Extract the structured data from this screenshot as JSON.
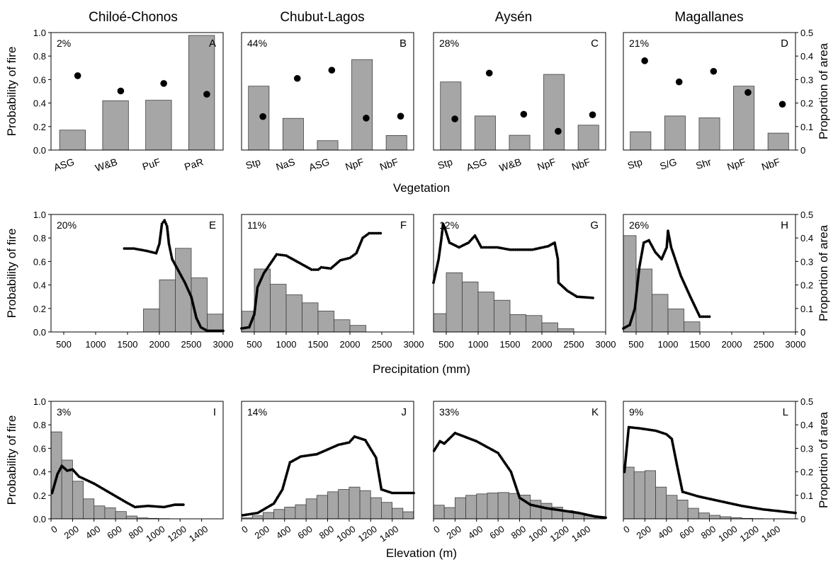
{
  "column_titles": [
    "Chiloé-Chonos",
    "Chubut-Lagos",
    "Aysén",
    "Magallanes"
  ],
  "row_xlabels": [
    "Vegetation",
    "Precipitation (mm)",
    "Elevation (m)"
  ],
  "left_ylabel": "Probability of fire",
  "right_ylabel": "Proportion of area",
  "left_yticks": [
    "0.0",
    "0.2",
    "0.4",
    "0.6",
    "0.8",
    "1.0"
  ],
  "right_yticks": [
    "0",
    "0.1",
    "0.2",
    "0.3",
    "0.4",
    "0.5"
  ],
  "colors": {
    "bar_fill": "#a6a6a6",
    "bar_stroke": "#3f3f3f",
    "marker": "#000000"
  },
  "chart_data": [
    {
      "panel": "A",
      "type": "bar",
      "pct": "2%",
      "categories": [
        "ASG",
        "W&B",
        "PuF",
        "PaR"
      ],
      "bars": [
        0.085,
        0.21,
        0.212,
        0.488
      ],
      "dots": [
        0.633,
        0.503,
        0.567,
        0.475
      ],
      "left_ylim": [
        0,
        1
      ],
      "right_ylim": [
        0,
        0.5
      ]
    },
    {
      "panel": "B",
      "type": "bar",
      "pct": "44%",
      "categories": [
        "Stp",
        "NaS",
        "ASG",
        "NpF",
        "NbF"
      ],
      "bars": [
        0.272,
        0.135,
        0.04,
        0.385,
        0.062
      ],
      "dots": [
        0.285,
        0.61,
        0.68,
        0.272,
        0.288
      ],
      "left_ylim": [
        0,
        1
      ],
      "right_ylim": [
        0,
        0.5
      ]
    },
    {
      "panel": "C",
      "type": "bar",
      "pct": "28%",
      "categories": [
        "Stp",
        "ASG",
        "W&B",
        "NpF",
        "NbF"
      ],
      "bars": [
        0.29,
        0.145,
        0.063,
        0.322,
        0.106
      ],
      "dots": [
        0.265,
        0.655,
        0.305,
        0.16,
        0.3
      ],
      "left_ylim": [
        0,
        1
      ],
      "right_ylim": [
        0,
        0.5
      ]
    },
    {
      "panel": "D",
      "type": "bar",
      "pct": "21%",
      "categories": [
        "Stp",
        "S/G",
        "Shr",
        "NpF",
        "NbF"
      ],
      "bars": [
        0.078,
        0.145,
        0.137,
        0.272,
        0.072
      ],
      "dots": [
        0.76,
        0.58,
        0.67,
        0.49,
        0.39
      ],
      "left_ylim": [
        0,
        1
      ],
      "right_ylim": [
        0,
        0.5
      ]
    },
    {
      "panel": "E",
      "type": "histogram_line",
      "pct": "20%",
      "xlim": [
        300,
        3000
      ],
      "xticks": [
        500,
        1000,
        1500,
        2000,
        2500,
        3000
      ],
      "xticklabels": [
        "500",
        "1000",
        "1500",
        "2000",
        "2500",
        "3000"
      ],
      "bin_edges": [
        1750,
        2000,
        2250,
        2500,
        2750,
        3000
      ],
      "bars": [
        0.098,
        0.222,
        0.356,
        0.23,
        0.076
      ],
      "curve": [
        [
          1450,
          0.71
        ],
        [
          1600,
          0.71
        ],
        [
          1800,
          0.69
        ],
        [
          1950,
          0.67
        ],
        [
          2000,
          0.75
        ],
        [
          2040,
          0.92
        ],
        [
          2080,
          0.95
        ],
        [
          2120,
          0.9
        ],
        [
          2150,
          0.75
        ],
        [
          2200,
          0.62
        ],
        [
          2300,
          0.52
        ],
        [
          2400,
          0.42
        ],
        [
          2500,
          0.3
        ],
        [
          2580,
          0.12
        ],
        [
          2650,
          0.04
        ],
        [
          2750,
          0.01
        ],
        [
          3000,
          0.01
        ]
      ],
      "left_ylim": [
        0,
        1
      ],
      "right_ylim": [
        0,
        0.5
      ]
    },
    {
      "panel": "F",
      "type": "histogram_line",
      "pct": "11%",
      "xlim": [
        300,
        3000
      ],
      "xticks": [
        500,
        1000,
        1500,
        2000,
        2500,
        3000
      ],
      "xticklabels": [
        "500",
        "1000",
        "1500",
        "2000",
        "2500",
        "3000"
      ],
      "bin_edges": [
        250,
        500,
        750,
        1000,
        1250,
        1500,
        1750,
        2000,
        2250
      ],
      "bars": [
        0.088,
        0.268,
        0.203,
        0.158,
        0.124,
        0.089,
        0.052,
        0.028
      ],
      "curve": [
        [
          300,
          0.03
        ],
        [
          420,
          0.04
        ],
        [
          500,
          0.15
        ],
        [
          550,
          0.38
        ],
        [
          650,
          0.5
        ],
        [
          800,
          0.62
        ],
        [
          850,
          0.66
        ],
        [
          1000,
          0.65
        ],
        [
          1200,
          0.59
        ],
        [
          1400,
          0.53
        ],
        [
          1500,
          0.53
        ],
        [
          1550,
          0.55
        ],
        [
          1700,
          0.54
        ],
        [
          1850,
          0.61
        ],
        [
          2000,
          0.63
        ],
        [
          2100,
          0.67
        ],
        [
          2200,
          0.8
        ],
        [
          2300,
          0.84
        ],
        [
          2480,
          0.84
        ]
      ],
      "left_ylim": [
        0,
        1
      ],
      "right_ylim": [
        0,
        0.5
      ]
    },
    {
      "panel": "G",
      "type": "histogram_line",
      "pct": "12%",
      "xlim": [
        300,
        3000
      ],
      "xticks": [
        500,
        1000,
        1500,
        2000,
        2500,
        3000
      ],
      "xticklabels": [
        "500",
        "1000",
        "1500",
        "2000",
        "2500",
        "3000"
      ],
      "bin_edges": [
        250,
        500,
        750,
        1000,
        1250,
        1500,
        1750,
        2000,
        2250,
        2500
      ],
      "bars": [
        0.078,
        0.252,
        0.213,
        0.17,
        0.135,
        0.074,
        0.07,
        0.039,
        0.014
      ],
      "curve": [
        [
          300,
          0.42
        ],
        [
          380,
          0.62
        ],
        [
          420,
          0.78
        ],
        [
          450,
          0.92
        ],
        [
          480,
          0.88
        ],
        [
          550,
          0.76
        ],
        [
          700,
          0.72
        ],
        [
          850,
          0.76
        ],
        [
          950,
          0.82
        ],
        [
          1050,
          0.72
        ],
        [
          1300,
          0.72
        ],
        [
          1500,
          0.7
        ],
        [
          1850,
          0.7
        ],
        [
          2100,
          0.73
        ],
        [
          2200,
          0.76
        ],
        [
          2250,
          0.62
        ],
        [
          2260,
          0.42
        ],
        [
          2400,
          0.35
        ],
        [
          2550,
          0.3
        ],
        [
          2800,
          0.29
        ]
      ],
      "left_ylim": [
        0,
        1
      ],
      "right_ylim": [
        0,
        0.5
      ]
    },
    {
      "panel": "H",
      "type": "histogram_line",
      "pct": "26%",
      "xlim": [
        300,
        3000
      ],
      "xticks": [
        500,
        1000,
        1500,
        2000,
        2500,
        3000
      ],
      "xticklabels": [
        "500",
        "1000",
        "1500",
        "2000",
        "2500",
        "3000"
      ],
      "bin_edges": [
        250,
        500,
        750,
        1000,
        1250,
        1500
      ],
      "bars": [
        0.41,
        0.268,
        0.16,
        0.098,
        0.043
      ],
      "curve": [
        [
          300,
          0.03
        ],
        [
          400,
          0.06
        ],
        [
          480,
          0.2
        ],
        [
          550,
          0.55
        ],
        [
          620,
          0.76
        ],
        [
          700,
          0.78
        ],
        [
          800,
          0.68
        ],
        [
          900,
          0.62
        ],
        [
          980,
          0.72
        ],
        [
          1000,
          0.86
        ],
        [
          1050,
          0.72
        ],
        [
          1200,
          0.48
        ],
        [
          1350,
          0.3
        ],
        [
          1500,
          0.13
        ],
        [
          1650,
          0.13
        ]
      ],
      "left_ylim": [
        0,
        1
      ],
      "right_ylim": [
        0,
        0.5
      ]
    },
    {
      "panel": "I",
      "type": "histogram_line",
      "pct": "3%",
      "xlim": [
        0,
        1600
      ],
      "xticks": [
        0,
        200,
        400,
        600,
        800,
        1000,
        1200,
        1400
      ],
      "xticklabels": [
        "0",
        "200",
        "400",
        "600",
        "800",
        "1000",
        "1200",
        "1400"
      ],
      "bin_edges": [
        0,
        100,
        200,
        300,
        400,
        500,
        600,
        700,
        800,
        900,
        1000,
        1100
      ],
      "bars": [
        0.37,
        0.25,
        0.16,
        0.085,
        0.055,
        0.047,
        0.031,
        0.012,
        0.004,
        0.002,
        0.001
      ],
      "curve": [
        [
          10,
          0.22
        ],
        [
          60,
          0.38
        ],
        [
          100,
          0.45
        ],
        [
          150,
          0.41
        ],
        [
          200,
          0.42
        ],
        [
          260,
          0.36
        ],
        [
          400,
          0.3
        ],
        [
          550,
          0.22
        ],
        [
          700,
          0.14
        ],
        [
          780,
          0.1
        ],
        [
          900,
          0.11
        ],
        [
          1050,
          0.1
        ],
        [
          1150,
          0.12
        ],
        [
          1230,
          0.12
        ]
      ],
      "left_ylim": [
        0,
        1
      ],
      "right_ylim": [
        0,
        0.5
      ]
    },
    {
      "panel": "J",
      "type": "histogram_line",
      "pct": "14%",
      "xlim": [
        0,
        1600
      ],
      "xticks": [
        0,
        200,
        400,
        600,
        800,
        1000,
        1200,
        1400
      ],
      "xticklabels": [
        "0",
        "200",
        "400",
        "600",
        "800",
        "1000",
        "1200",
        "1400"
      ],
      "bin_edges": [
        0,
        100,
        200,
        300,
        400,
        500,
        600,
        700,
        800,
        900,
        1000,
        1100,
        1200,
        1300,
        1400,
        1500,
        1600
      ],
      "bars": [
        0.004,
        0.013,
        0.027,
        0.04,
        0.05,
        0.06,
        0.085,
        0.1,
        0.115,
        0.125,
        0.135,
        0.12,
        0.09,
        0.07,
        0.045,
        0.03
      ],
      "curve": [
        [
          10,
          0.03
        ],
        [
          150,
          0.05
        ],
        [
          300,
          0.13
        ],
        [
          380,
          0.25
        ],
        [
          450,
          0.48
        ],
        [
          550,
          0.53
        ],
        [
          700,
          0.55
        ],
        [
          900,
          0.63
        ],
        [
          1000,
          0.65
        ],
        [
          1050,
          0.7
        ],
        [
          1150,
          0.67
        ],
        [
          1250,
          0.52
        ],
        [
          1300,
          0.25
        ],
        [
          1400,
          0.22
        ],
        [
          1600,
          0.22
        ]
      ],
      "left_ylim": [
        0,
        1
      ],
      "right_ylim": [
        0,
        0.5
      ]
    },
    {
      "panel": "K",
      "type": "histogram_line",
      "pct": "33%",
      "xlim": [
        0,
        1600
      ],
      "xticks": [
        0,
        200,
        400,
        600,
        800,
        1000,
        1200,
        1400
      ],
      "xticklabels": [
        "0",
        "200",
        "400",
        "600",
        "800",
        "1000",
        "1200",
        "1400"
      ],
      "bin_edges": [
        0,
        100,
        200,
        300,
        400,
        500,
        600,
        700,
        800,
        900,
        1000,
        1100,
        1200,
        1300,
        1400,
        1500,
        1600
      ],
      "bars": [
        0.058,
        0.048,
        0.09,
        0.1,
        0.106,
        0.11,
        0.112,
        0.108,
        0.101,
        0.079,
        0.066,
        0.05,
        0.035,
        0.024,
        0.014,
        0.008
      ],
      "curve": [
        [
          5,
          0.58
        ],
        [
          60,
          0.66
        ],
        [
          100,
          0.64
        ],
        [
          200,
          0.73
        ],
        [
          400,
          0.66
        ],
        [
          600,
          0.56
        ],
        [
          720,
          0.4
        ],
        [
          800,
          0.18
        ],
        [
          900,
          0.12
        ],
        [
          1050,
          0.09
        ],
        [
          1200,
          0.07
        ],
        [
          1350,
          0.05
        ],
        [
          1500,
          0.02
        ],
        [
          1600,
          0.01
        ]
      ],
      "left_ylim": [
        0,
        1
      ],
      "right_ylim": [
        0,
        0.5
      ]
    },
    {
      "panel": "L",
      "type": "histogram_line",
      "pct": "9%",
      "xlim": [
        0,
        1600
      ],
      "xticks": [
        0,
        200,
        400,
        600,
        800,
        1000,
        1200,
        1400
      ],
      "xticklabels": [
        "0",
        "200",
        "400",
        "600",
        "800",
        "1000",
        "1200",
        "1400"
      ],
      "bin_edges": [
        0,
        100,
        200,
        300,
        400,
        500,
        600,
        700,
        800,
        900,
        1000,
        1100,
        1200,
        1300
      ],
      "bars": [
        0.22,
        0.2,
        0.205,
        0.135,
        0.1,
        0.08,
        0.045,
        0.025,
        0.015,
        0.009,
        0.005,
        0.002,
        0.001
      ],
      "curve": [
        [
          10,
          0.4
        ],
        [
          50,
          0.78
        ],
        [
          150,
          0.77
        ],
        [
          300,
          0.75
        ],
        [
          400,
          0.72
        ],
        [
          450,
          0.68
        ],
        [
          500,
          0.45
        ],
        [
          550,
          0.23
        ],
        [
          700,
          0.19
        ],
        [
          900,
          0.15
        ],
        [
          1100,
          0.11
        ],
        [
          1300,
          0.08
        ],
        [
          1500,
          0.06
        ],
        [
          1600,
          0.05
        ]
      ],
      "left_ylim": [
        0,
        1
      ],
      "right_ylim": [
        0,
        0.5
      ]
    }
  ]
}
